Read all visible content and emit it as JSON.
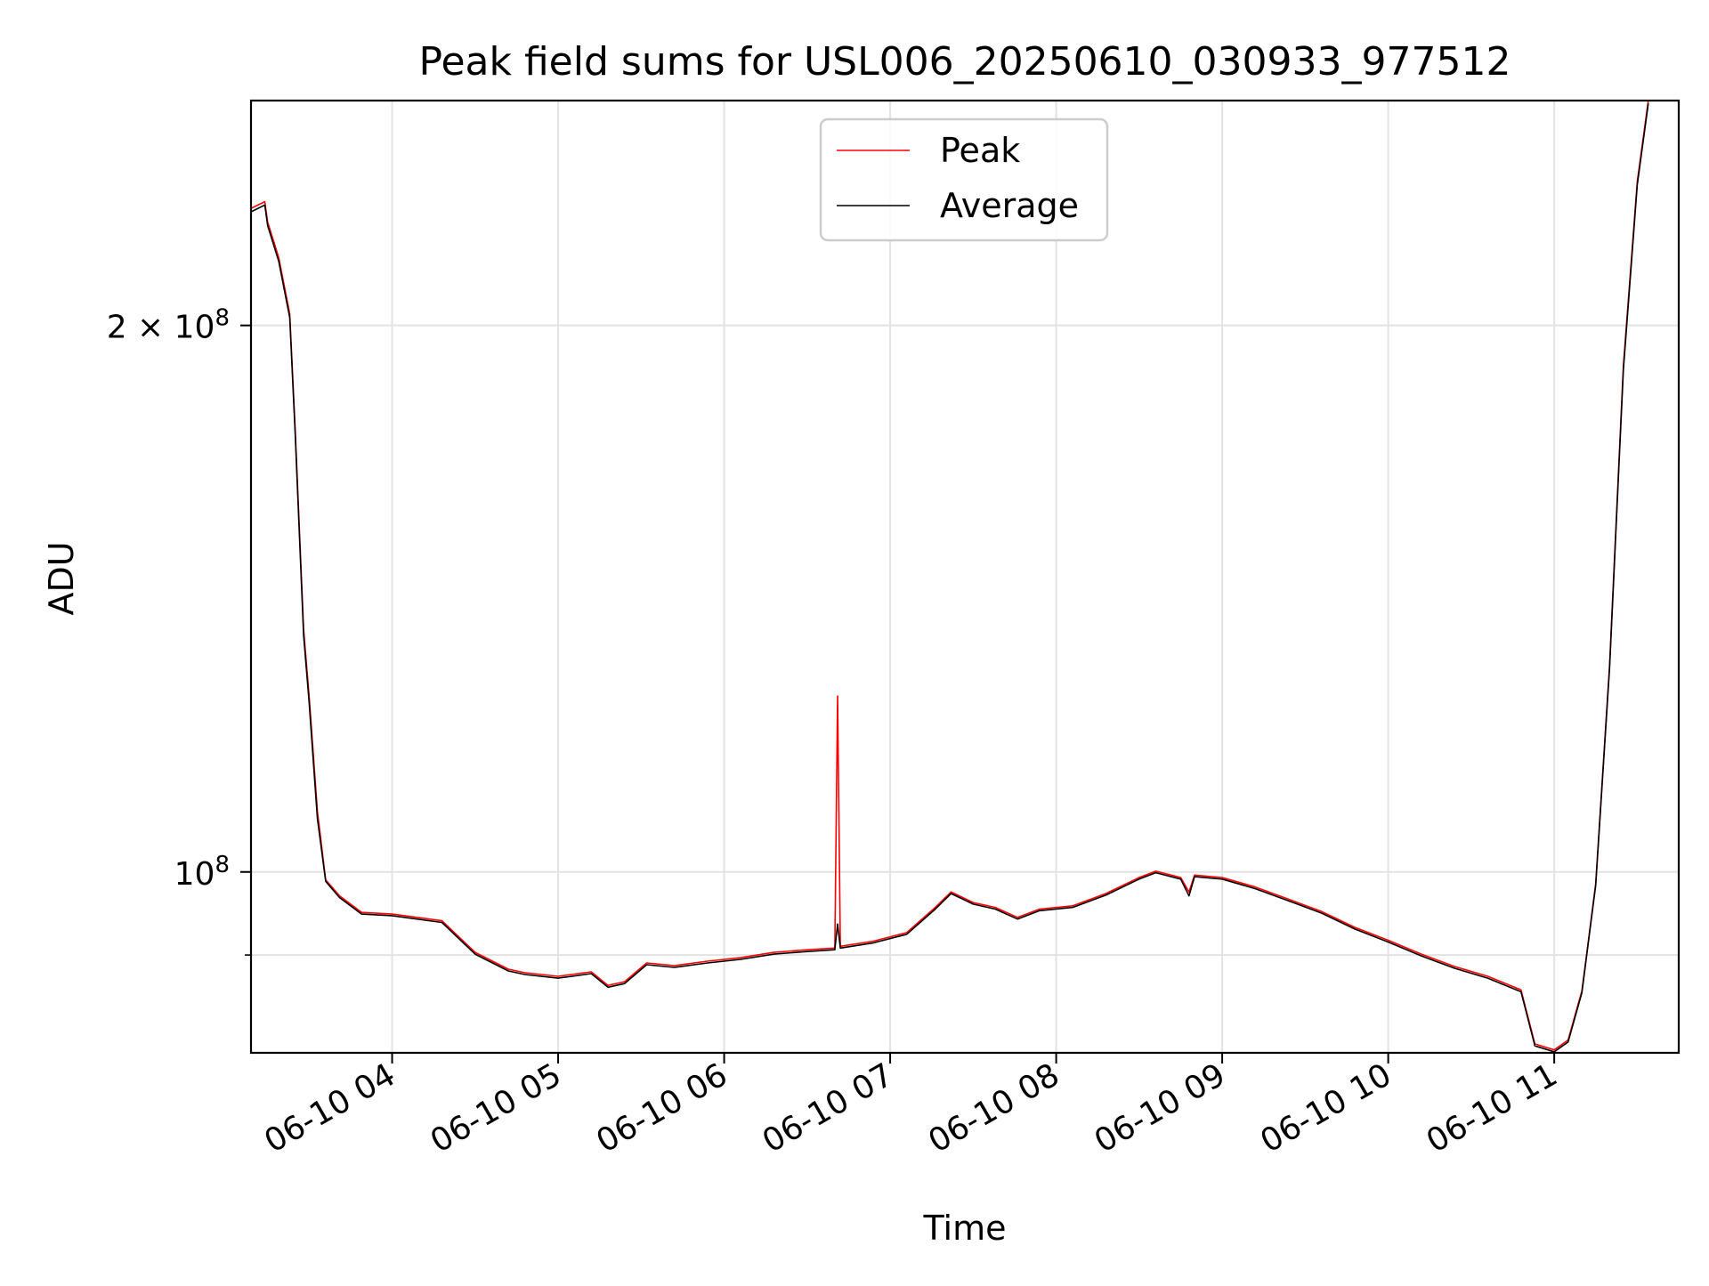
{
  "chart_data": {
    "type": "line",
    "title": "Peak field sums for USL006_20250610_030933_977512",
    "xlabel": "Time",
    "ylabel": "ADU",
    "x_range": [
      "2025-06-10 03:09",
      "2025-06-10 11:45"
    ],
    "y_scale": "log",
    "y_range": [
      79500000,
      266000000
    ],
    "y_ticks": [
      {
        "value": 200000000,
        "base": "2 × 10",
        "exp": "8"
      },
      {
        "value": 100000000,
        "base": "10",
        "exp": "8"
      }
    ],
    "y_minor_ticks": [
      90000000
    ],
    "x_ticks": [
      {
        "value": "2025-06-10 04:00",
        "label": "06-10 04"
      },
      {
        "value": "2025-06-10 05:00",
        "label": "06-10 05"
      },
      {
        "value": "2025-06-10 06:00",
        "label": "06-10 06"
      },
      {
        "value": "2025-06-10 07:00",
        "label": "06-10 07"
      },
      {
        "value": "2025-06-10 08:00",
        "label": "06-10 08"
      },
      {
        "value": "2025-06-10 09:00",
        "label": "06-10 09"
      },
      {
        "value": "2025-06-10 10:00",
        "label": "06-10 10"
      },
      {
        "value": "2025-06-10 11:00",
        "label": "06-10 11"
      }
    ],
    "grid": true,
    "legend_position": "top-center",
    "series": [
      {
        "name": "Peak",
        "color": "#ff0000",
        "points": [
          [
            "2025-06-10 03:09",
            232000000
          ],
          [
            "2025-06-10 03:14",
            234000000
          ],
          [
            "2025-06-10 03:15",
            228000000
          ],
          [
            "2025-06-10 03:19",
            218000000
          ],
          [
            "2025-06-10 03:23",
            203000000
          ],
          [
            "2025-06-10 03:25",
            175000000
          ],
          [
            "2025-06-10 03:28",
            136000000
          ],
          [
            "2025-06-10 03:30",
            125000000
          ],
          [
            "2025-06-10 03:33",
            108000000
          ],
          [
            "2025-06-10 03:36",
            99000000
          ],
          [
            "2025-06-10 03:41",
            97000000
          ],
          [
            "2025-06-10 03:49",
            95000000
          ],
          [
            "2025-06-10 04:00",
            94800000
          ],
          [
            "2025-06-10 04:18",
            94000000
          ],
          [
            "2025-06-10 04:30",
            90300000
          ],
          [
            "2025-06-10 04:42",
            88400000
          ],
          [
            "2025-06-10 04:48",
            88000000
          ],
          [
            "2025-06-10 05:00",
            87600000
          ],
          [
            "2025-06-10 05:12",
            88100000
          ],
          [
            "2025-06-10 05:18",
            86600000
          ],
          [
            "2025-06-10 05:24",
            87000000
          ],
          [
            "2025-06-10 05:32",
            89100000
          ],
          [
            "2025-06-10 05:42",
            88800000
          ],
          [
            "2025-06-10 05:54",
            89300000
          ],
          [
            "2025-06-10 06:06",
            89700000
          ],
          [
            "2025-06-10 06:18",
            90300000
          ],
          [
            "2025-06-10 06:30",
            90600000
          ],
          [
            "2025-06-10 06:40",
            90800000
          ],
          [
            "2025-06-10 06:41",
            125000000
          ],
          [
            "2025-06-10 06:42",
            91000000
          ],
          [
            "2025-06-10 06:54",
            91600000
          ],
          [
            "2025-06-10 07:06",
            92600000
          ],
          [
            "2025-06-10 07:16",
            95500000
          ],
          [
            "2025-06-10 07:22",
            97500000
          ],
          [
            "2025-06-10 07:30",
            96200000
          ],
          [
            "2025-06-10 07:38",
            95600000
          ],
          [
            "2025-06-10 07:46",
            94400000
          ],
          [
            "2025-06-10 07:54",
            95400000
          ],
          [
            "2025-06-10 08:06",
            95800000
          ],
          [
            "2025-06-10 08:18",
            97300000
          ],
          [
            "2025-06-10 08:30",
            99300000
          ],
          [
            "2025-06-10 08:36",
            100100000
          ],
          [
            "2025-06-10 08:45",
            99300000
          ],
          [
            "2025-06-10 08:48",
            97500000
          ],
          [
            "2025-06-10 08:50",
            99600000
          ],
          [
            "2025-06-10 09:00",
            99300000
          ],
          [
            "2025-06-10 09:12",
            98100000
          ],
          [
            "2025-06-10 09:24",
            96600000
          ],
          [
            "2025-06-10 09:36",
            95100000
          ],
          [
            "2025-06-10 09:48",
            93200000
          ],
          [
            "2025-06-10 10:00",
            91700000
          ],
          [
            "2025-06-10 10:12",
            90100000
          ],
          [
            "2025-06-10 10:24",
            88700000
          ],
          [
            "2025-06-10 10:36",
            87600000
          ],
          [
            "2025-06-10 10:48",
            86100000
          ],
          [
            "2025-06-10 10:53",
            80400000
          ],
          [
            "2025-06-10 11:00",
            79800000
          ],
          [
            "2025-06-10 11:05",
            80800000
          ],
          [
            "2025-06-10 11:10",
            86000000
          ],
          [
            "2025-06-10 11:15",
            98500000
          ],
          [
            "2025-06-10 11:20",
            130000000
          ],
          [
            "2025-06-10 11:25",
            190000000
          ],
          [
            "2025-06-10 11:30",
            240000000
          ],
          [
            "2025-06-10 11:34",
            266000000
          ]
        ]
      },
      {
        "name": "Average",
        "color": "#000000",
        "points": [
          [
            "2025-06-10 03:09",
            231000000
          ],
          [
            "2025-06-10 03:14",
            233000000
          ],
          [
            "2025-06-10 03:15",
            227000000
          ],
          [
            "2025-06-10 03:19",
            217000000
          ],
          [
            "2025-06-10 03:23",
            202000000
          ],
          [
            "2025-06-10 03:25",
            174000000
          ],
          [
            "2025-06-10 03:28",
            135000000
          ],
          [
            "2025-06-10 03:30",
            124000000
          ],
          [
            "2025-06-10 03:33",
            107000000
          ],
          [
            "2025-06-10 03:36",
            98800000
          ],
          [
            "2025-06-10 03:41",
            96800000
          ],
          [
            "2025-06-10 03:49",
            94800000
          ],
          [
            "2025-06-10 04:00",
            94600000
          ],
          [
            "2025-06-10 04:18",
            93800000
          ],
          [
            "2025-06-10 04:30",
            90100000
          ],
          [
            "2025-06-10 04:42",
            88200000
          ],
          [
            "2025-06-10 04:48",
            87800000
          ],
          [
            "2025-06-10 05:00",
            87400000
          ],
          [
            "2025-06-10 05:12",
            87900000
          ],
          [
            "2025-06-10 05:18",
            86400000
          ],
          [
            "2025-06-10 05:24",
            86800000
          ],
          [
            "2025-06-10 05:32",
            88900000
          ],
          [
            "2025-06-10 05:42",
            88600000
          ],
          [
            "2025-06-10 05:54",
            89100000
          ],
          [
            "2025-06-10 06:06",
            89500000
          ],
          [
            "2025-06-10 06:18",
            90100000
          ],
          [
            "2025-06-10 06:30",
            90400000
          ],
          [
            "2025-06-10 06:40",
            90600000
          ],
          [
            "2025-06-10 06:41",
            93600000
          ],
          [
            "2025-06-10 06:42",
            90800000
          ],
          [
            "2025-06-10 06:54",
            91400000
          ],
          [
            "2025-06-10 07:06",
            92400000
          ],
          [
            "2025-06-10 07:16",
            95300000
          ],
          [
            "2025-06-10 07:22",
            97300000
          ],
          [
            "2025-06-10 07:30",
            96000000
          ],
          [
            "2025-06-10 07:38",
            95400000
          ],
          [
            "2025-06-10 07:46",
            94200000
          ],
          [
            "2025-06-10 07:54",
            95200000
          ],
          [
            "2025-06-10 08:06",
            95600000
          ],
          [
            "2025-06-10 08:18",
            97100000
          ],
          [
            "2025-06-10 08:30",
            99100000
          ],
          [
            "2025-06-10 08:36",
            99900000
          ],
          [
            "2025-06-10 08:45",
            99100000
          ],
          [
            "2025-06-10 08:48",
            97000000
          ],
          [
            "2025-06-10 08:50",
            99400000
          ],
          [
            "2025-06-10 09:00",
            99100000
          ],
          [
            "2025-06-10 09:12",
            97900000
          ],
          [
            "2025-06-10 09:24",
            96400000
          ],
          [
            "2025-06-10 09:36",
            94900000
          ],
          [
            "2025-06-10 09:48",
            93000000
          ],
          [
            "2025-06-10 10:00",
            91500000
          ],
          [
            "2025-06-10 10:12",
            89900000
          ],
          [
            "2025-06-10 10:24",
            88500000
          ],
          [
            "2025-06-10 10:36",
            87400000
          ],
          [
            "2025-06-10 10:48",
            85900000
          ],
          [
            "2025-06-10 10:53",
            80200000
          ],
          [
            "2025-06-10 11:00",
            79600000
          ],
          [
            "2025-06-10 11:05",
            80600000
          ],
          [
            "2025-06-10 11:10",
            85800000
          ],
          [
            "2025-06-10 11:15",
            98300000
          ],
          [
            "2025-06-10 11:20",
            129500000
          ],
          [
            "2025-06-10 11:25",
            189000000
          ],
          [
            "2025-06-10 11:30",
            239000000
          ],
          [
            "2025-06-10 11:34",
            265000000
          ]
        ]
      }
    ]
  }
}
